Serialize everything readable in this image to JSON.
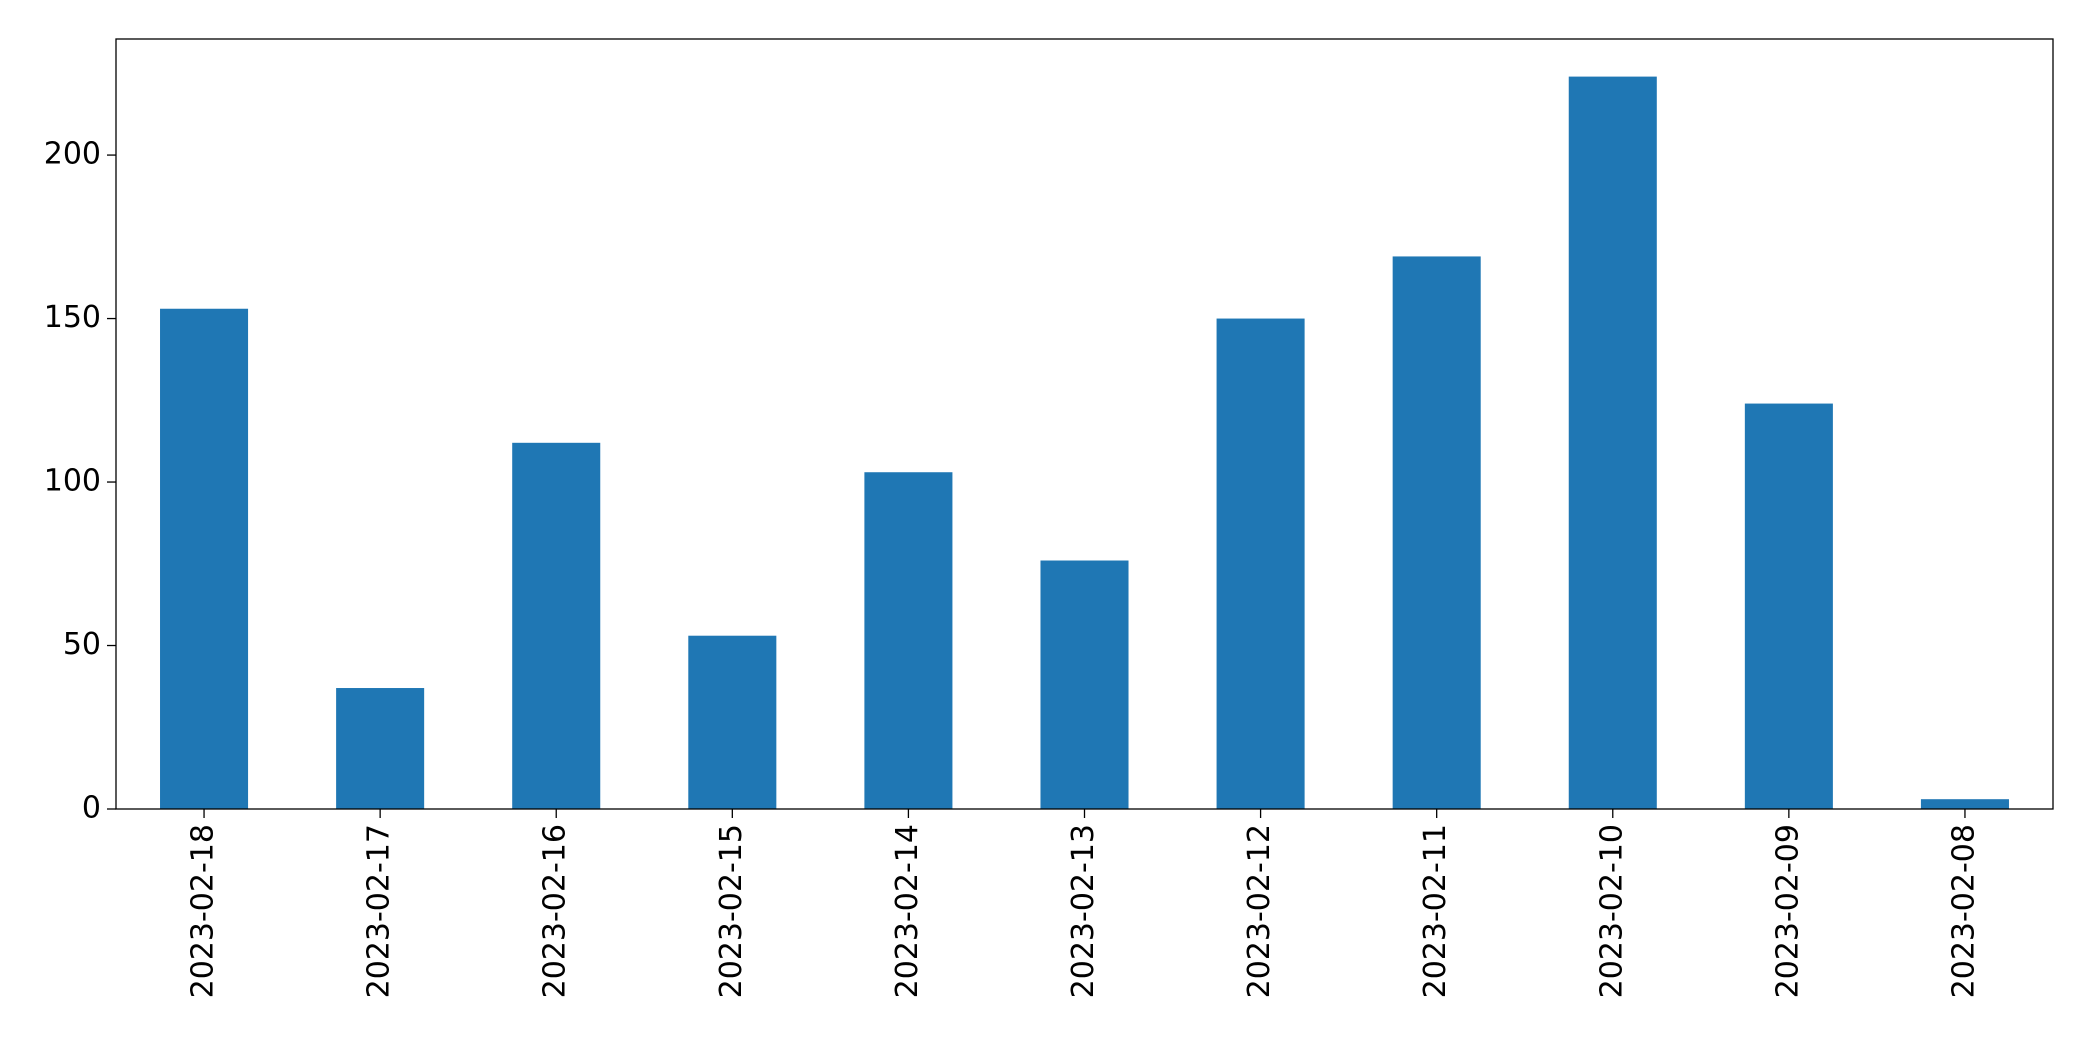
{
  "chart_data": {
    "type": "bar",
    "categories": [
      "2023-02-18",
      "2023-02-17",
      "2023-02-16",
      "2023-02-15",
      "2023-02-14",
      "2023-02-13",
      "2023-02-12",
      "2023-02-11",
      "2023-02-10",
      "2023-02-09",
      "2023-02-08"
    ],
    "values": [
      153,
      37,
      112,
      53,
      103,
      76,
      150,
      169,
      224,
      124,
      3
    ],
    "color": "#1f77b4",
    "ylim": [
      0,
      235.5
    ],
    "yticks": [
      0,
      50,
      100,
      150,
      200
    ],
    "grid": false
  }
}
